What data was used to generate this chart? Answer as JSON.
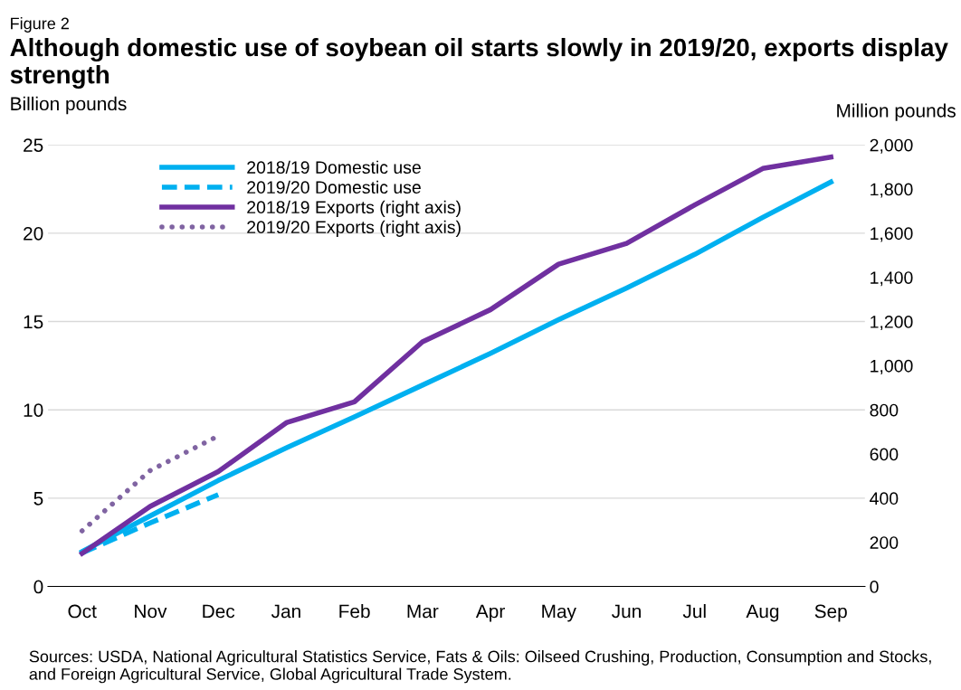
{
  "chart_data": {
    "type": "line",
    "subtitle": "Figure 2",
    "title": "Although domestic use of soybean oil starts slowly in 2019/20, exports display strength",
    "ylabel": "Billion pounds",
    "y2label": "Million pounds",
    "categories": [
      "Oct",
      "Nov",
      "Dec",
      "Jan",
      "Feb",
      "Mar",
      "Apr",
      "May",
      "Jun",
      "Jul",
      "Aug",
      "Sep"
    ],
    "series": [
      {
        "name": "2018/19 Domestic use",
        "color": "#00b0f0",
        "line_style": "solid",
        "values": [
          1.97,
          4.0,
          6.0,
          7.85,
          9.6,
          11.4,
          13.2,
          15.1,
          16.9,
          18.8,
          20.9,
          22.9
        ]
      },
      {
        "name": "2019/20 Domestic use",
        "color": "#00b0f0",
        "line_style": "dashed",
        "values": [
          1.9,
          3.6,
          5.2,
          null,
          null,
          null,
          null,
          null,
          null,
          null,
          null,
          null
        ]
      },
      {
        "name": "2018/19 Exports (right axis)",
        "color": "#7030a0",
        "line_style": "solid",
        "axis": "y2",
        "values": [
          150,
          363,
          520,
          742,
          836,
          1108,
          1254,
          1460,
          1554,
          1728,
          1893,
          1945
        ]
      },
      {
        "name": "2019/20 Exports (right axis)",
        "color": "#8064a2",
        "line_style": "dotted",
        "axis": "y2",
        "values": [
          252,
          525,
          682,
          null,
          null,
          null,
          null,
          null,
          null,
          null,
          null,
          null
        ]
      }
    ],
    "ylim": [
      0,
      25
    ],
    "yticks": [
      0,
      5,
      10,
      15,
      20,
      25
    ],
    "y2lim": [
      0,
      2000
    ],
    "y2ticks": [
      0,
      200,
      400,
      600,
      800,
      {
        "value": 1000,
        "label": "1,000"
      },
      {
        "value": 1200,
        "label": "1,200"
      },
      {
        "value": 1400,
        "label": "1,400"
      },
      {
        "value": 1600,
        "label": "1,600"
      },
      {
        "value": 1800,
        "label": "1,800"
      },
      {
        "value": 2000,
        "label": "2,000"
      }
    ],
    "grid": "y",
    "legend": "top left",
    "annotations": [
      "Sources: USDA, National Agricultural Statistics Service, Fats & Oils: Oilseed Crushing, Production, Consumption and Stocks, and Foreign Agricultural Service, Global Agricultural Trade System."
    ]
  }
}
